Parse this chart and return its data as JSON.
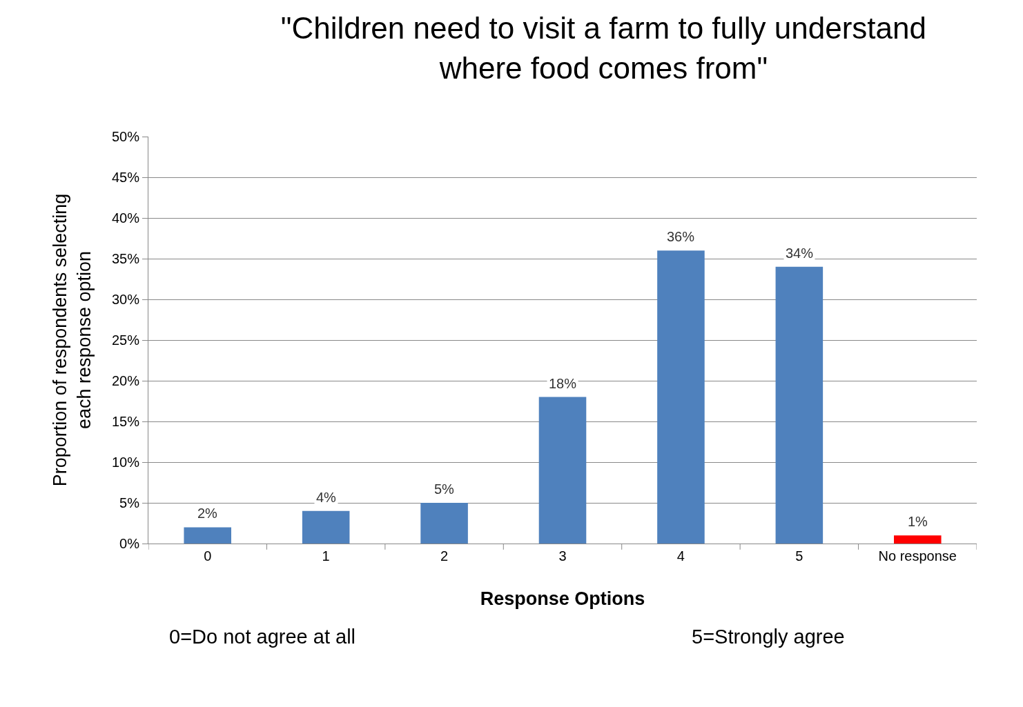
{
  "chart_data": {
    "type": "bar",
    "title": "\"Children need to visit a farm to fully understand where food comes from\"",
    "xlabel": "Response Options",
    "ylabel": "Proportion of respondents selecting each response option",
    "categories": [
      "0",
      "1",
      "2",
      "3",
      "4",
      "5",
      "No response"
    ],
    "values": [
      2,
      4,
      5,
      18,
      36,
      34,
      1
    ],
    "colors": [
      "#4f81bd",
      "#4f81bd",
      "#4f81bd",
      "#4f81bd",
      "#4f81bd",
      "#4f81bd",
      "#ff0000"
    ],
    "value_labels": [
      "2%",
      "4%",
      "5%",
      "18%",
      "36%",
      "34%",
      "1%"
    ],
    "ylim": [
      0,
      50
    ],
    "yticks": [
      {
        "value": 0,
        "label": "0%"
      },
      {
        "value": 5,
        "label": "5%"
      },
      {
        "value": 10,
        "label": "10%"
      },
      {
        "value": 15,
        "label": "15%"
      },
      {
        "value": 20,
        "label": "20%"
      },
      {
        "value": 25,
        "label": "25%"
      },
      {
        "value": 30,
        "label": "30%"
      },
      {
        "value": 35,
        "label": "35%"
      },
      {
        "value": 40,
        "label": "40%"
      },
      {
        "value": 45,
        "label": "45%"
      },
      {
        "value": 50,
        "label": "50%"
      }
    ],
    "grid": "y",
    "annotations": [
      "0=Do not agree at all",
      "5=Strongly agree"
    ]
  }
}
